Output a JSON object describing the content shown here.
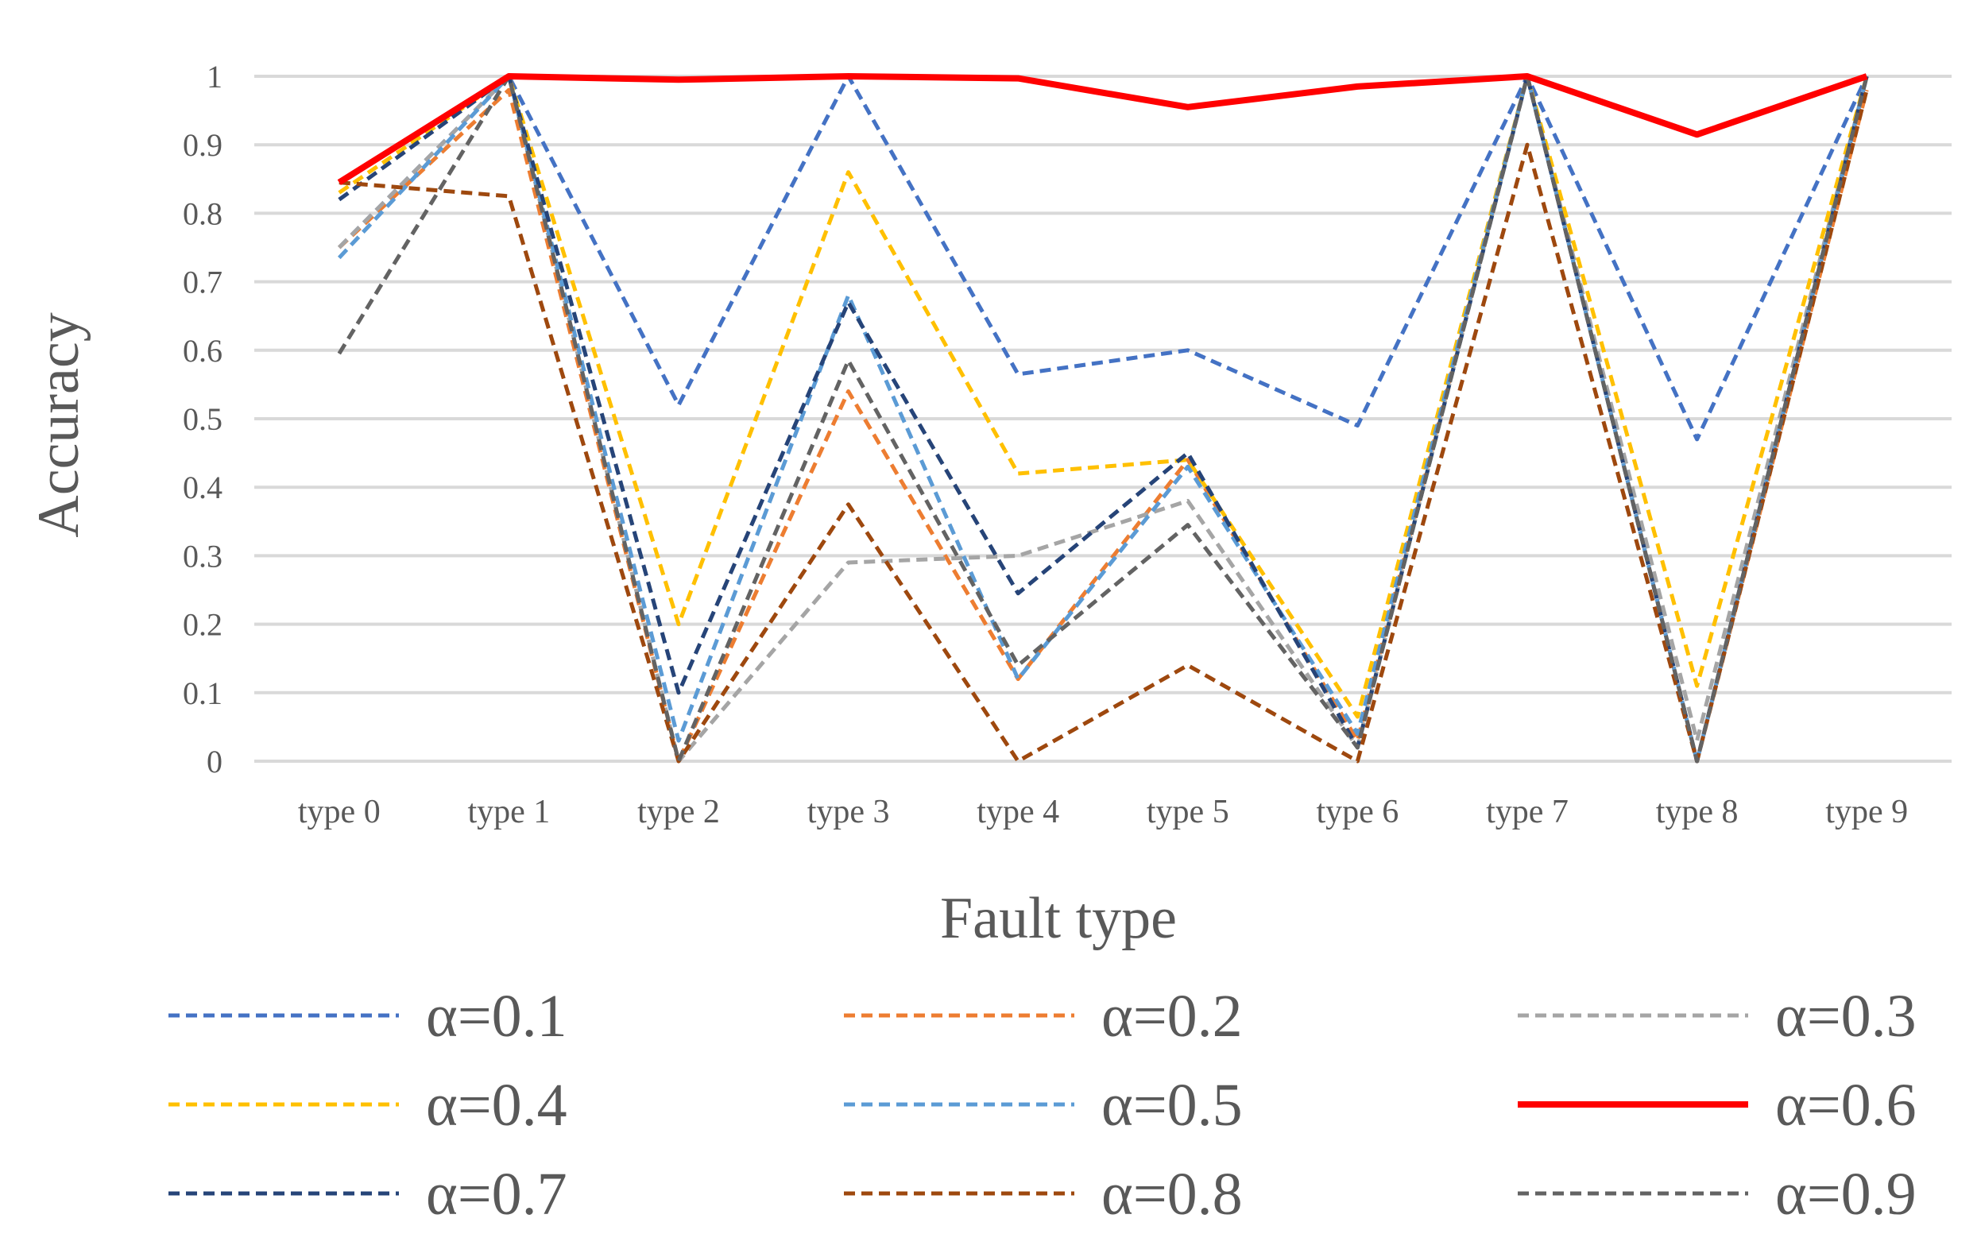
{
  "chart_data": {
    "type": "line",
    "xlabel": "Fault type",
    "ylabel": "Accuracy",
    "ylim": [
      0,
      1
    ],
    "yticks": [
      "0",
      "0.1",
      "0.2",
      "0.3",
      "0.4",
      "0.5",
      "0.6",
      "0.7",
      "0.8",
      "0.9",
      "1"
    ],
    "categories": [
      "type 0",
      "type 1",
      "type 2",
      "type 3",
      "type 4",
      "type 5",
      "type 6",
      "type 7",
      "type 8",
      "type 9"
    ],
    "grid": "horizontal",
    "legend_position": "bottom",
    "series": [
      {
        "name": "α=0.1",
        "color": "#4472C4",
        "dashed": true,
        "values": [
          0.75,
          1.0,
          0.52,
          1.0,
          0.565,
          0.6,
          0.49,
          1.0,
          0.47,
          1.0
        ]
      },
      {
        "name": "α=0.2",
        "color": "#ED7D31",
        "dashed": true,
        "values": [
          0.75,
          0.98,
          0.0,
          0.54,
          0.12,
          0.44,
          0.03,
          1.0,
          0.0,
          0.98
        ]
      },
      {
        "name": "α=0.3",
        "color": "#A5A5A5",
        "dashed": true,
        "values": [
          0.75,
          1.0,
          0.0,
          0.29,
          0.3,
          0.38,
          0.02,
          1.0,
          0.03,
          1.0
        ]
      },
      {
        "name": "α=0.4",
        "color": "#FFC000",
        "dashed": true,
        "values": [
          0.83,
          1.0,
          0.2,
          0.86,
          0.42,
          0.44,
          0.065,
          1.0,
          0.11,
          1.0
        ]
      },
      {
        "name": "α=0.5",
        "color": "#5B9BD5",
        "dashed": true,
        "values": [
          0.735,
          1.0,
          0.03,
          0.68,
          0.12,
          0.43,
          0.04,
          1.0,
          0.0,
          1.0
        ]
      },
      {
        "name": "α=0.6",
        "color": "#FF0000",
        "dashed": false,
        "values": [
          0.845,
          1.0,
          0.995,
          1.0,
          0.997,
          0.955,
          0.985,
          1.0,
          0.915,
          1.0
        ]
      },
      {
        "name": "α=0.7",
        "color": "#264478",
        "dashed": true,
        "values": [
          0.82,
          1.0,
          0.1,
          0.67,
          0.245,
          0.45,
          0.02,
          1.0,
          0.0,
          1.0
        ]
      },
      {
        "name": "α=0.8",
        "color": "#9E480E",
        "dashed": true,
        "values": [
          0.845,
          0.825,
          0.0,
          0.375,
          0.0,
          0.14,
          0.0,
          0.9,
          0.0,
          0.98
        ]
      },
      {
        "name": "α=0.9",
        "color": "#636363",
        "dashed": true,
        "values": [
          0.595,
          1.0,
          0.0,
          0.585,
          0.14,
          0.345,
          0.02,
          1.0,
          0.0,
          1.0
        ]
      }
    ]
  }
}
